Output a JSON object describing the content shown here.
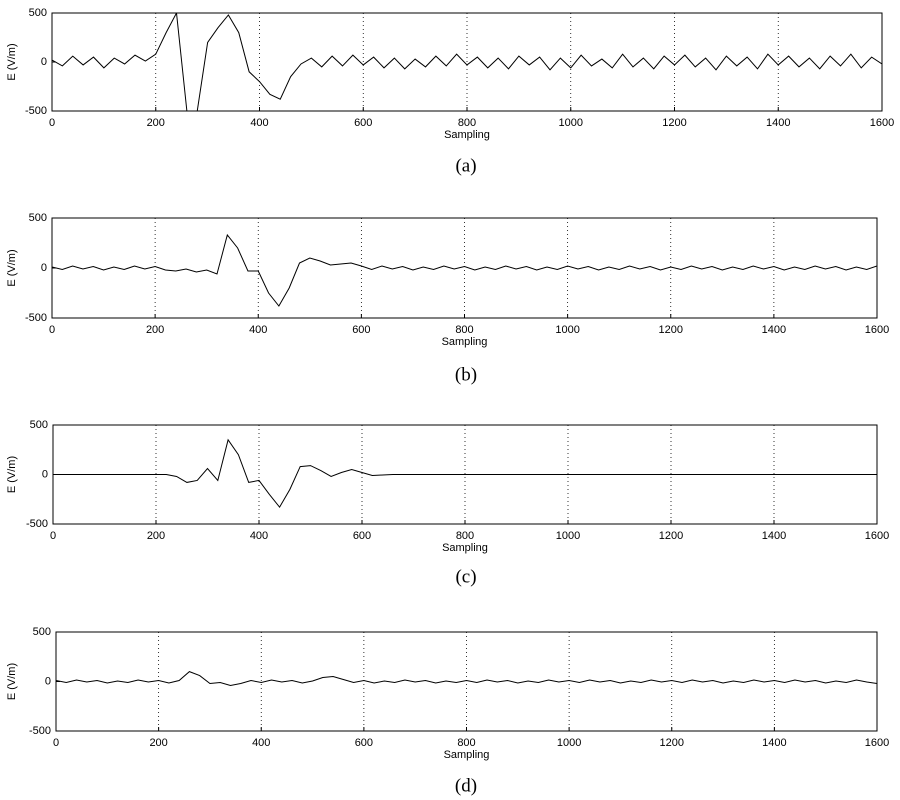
{
  "chart_data": [
    {
      "type": "line",
      "caption": "(a)",
      "xlabel": "Sampling",
      "ylabel": "E (V/m)",
      "color": "#000000",
      "grid": true,
      "xlim": [
        0,
        1600
      ],
      "xticks": [
        0,
        200,
        400,
        600,
        800,
        1000,
        1200,
        1400,
        1600
      ],
      "ylim": [
        -500,
        500
      ],
      "yticks": [
        -500,
        0,
        500
      ],
      "x": [
        0,
        20,
        40,
        60,
        80,
        100,
        120,
        140,
        160,
        180,
        200,
        220,
        240,
        260,
        280,
        300,
        320,
        340,
        360,
        380,
        400,
        420,
        440,
        460,
        480,
        500,
        520,
        540,
        560,
        580,
        600,
        620,
        640,
        660,
        680,
        700,
        720,
        740,
        760,
        780,
        800,
        820,
        840,
        860,
        880,
        900,
        920,
        940,
        960,
        980,
        1000,
        1020,
        1040,
        1060,
        1080,
        1100,
        1120,
        1140,
        1160,
        1180,
        1200,
        1220,
        1240,
        1260,
        1280,
        1300,
        1320,
        1340,
        1360,
        1380,
        1400,
        1420,
        1440,
        1460,
        1480,
        1500,
        1520,
        1540,
        1560,
        1580,
        1600
      ],
      "values": [
        20,
        -40,
        60,
        -30,
        50,
        -60,
        40,
        -20,
        70,
        10,
        80,
        300,
        500,
        -500,
        -500,
        200,
        350,
        480,
        300,
        -100,
        -200,
        -330,
        -380,
        -150,
        -20,
        40,
        -50,
        60,
        -40,
        70,
        -30,
        50,
        -60,
        40,
        -70,
        30,
        -50,
        60,
        -40,
        80,
        -30,
        50,
        -60,
        40,
        -70,
        60,
        -30,
        50,
        -80,
        40,
        -60,
        70,
        -40,
        30,
        -60,
        80,
        -50,
        40,
        -70,
        60,
        -30,
        70,
        -50,
        40,
        -80,
        60,
        -40,
        50,
        -70,
        80,
        -30,
        60,
        -50,
        40,
        -70,
        60,
        -40,
        80,
        -60,
        50,
        -20
      ]
    },
    {
      "type": "line",
      "caption": "(b)",
      "xlabel": "Sampling",
      "ylabel": "E (V/m)",
      "color": "#000000",
      "grid": true,
      "xlim": [
        0,
        1600
      ],
      "xticks": [
        0,
        200,
        400,
        600,
        800,
        1000,
        1200,
        1400,
        1600
      ],
      "ylim": [
        -500,
        500
      ],
      "yticks": [
        -500,
        0,
        500
      ],
      "x": [
        0,
        20,
        40,
        60,
        80,
        100,
        120,
        140,
        160,
        180,
        200,
        220,
        240,
        260,
        280,
        300,
        320,
        340,
        360,
        380,
        400,
        420,
        440,
        460,
        480,
        500,
        520,
        540,
        560,
        580,
        600,
        620,
        640,
        660,
        680,
        700,
        720,
        740,
        760,
        780,
        800,
        820,
        840,
        860,
        880,
        900,
        920,
        940,
        960,
        980,
        1000,
        1020,
        1040,
        1060,
        1080,
        1100,
        1120,
        1140,
        1160,
        1180,
        1200,
        1220,
        1240,
        1260,
        1280,
        1300,
        1320,
        1340,
        1360,
        1380,
        1400,
        1420,
        1440,
        1460,
        1480,
        1500,
        1520,
        1540,
        1560,
        1580,
        1600
      ],
      "values": [
        10,
        -15,
        20,
        -10,
        15,
        -20,
        10,
        -15,
        20,
        -10,
        15,
        -20,
        -30,
        -10,
        -40,
        -20,
        -60,
        330,
        200,
        -30,
        -30,
        -250,
        -380,
        -200,
        50,
        100,
        70,
        30,
        40,
        50,
        20,
        -15,
        20,
        -10,
        15,
        -20,
        10,
        -15,
        20,
        -10,
        15,
        -20,
        10,
        -15,
        20,
        -10,
        15,
        -20,
        10,
        -15,
        20,
        -10,
        15,
        -20,
        10,
        -15,
        20,
        -10,
        15,
        -20,
        10,
        -15,
        20,
        -10,
        15,
        -20,
        10,
        -15,
        20,
        -10,
        15,
        -20,
        10,
        -15,
        20,
        -10,
        15,
        -20,
        10,
        -15,
        20
      ]
    },
    {
      "type": "line",
      "caption": "(c)",
      "xlabel": "Sampling",
      "ylabel": "E (V/m)",
      "color": "#000000",
      "grid": true,
      "xlim": [
        0,
        1600
      ],
      "xticks": [
        0,
        200,
        400,
        600,
        800,
        1000,
        1200,
        1400,
        1600
      ],
      "ylim": [
        -500,
        500
      ],
      "yticks": [
        -500,
        0,
        500
      ],
      "x": [
        0,
        20,
        40,
        60,
        80,
        100,
        120,
        140,
        160,
        180,
        200,
        220,
        240,
        260,
        280,
        300,
        320,
        340,
        360,
        380,
        400,
        420,
        440,
        460,
        480,
        500,
        520,
        540,
        560,
        580,
        600,
        620,
        640,
        660,
        680,
        700,
        720,
        740,
        760,
        780,
        800,
        820,
        840,
        860,
        880,
        900,
        920,
        940,
        960,
        980,
        1000,
        1020,
        1040,
        1060,
        1080,
        1100,
        1120,
        1140,
        1160,
        1180,
        1200,
        1220,
        1240,
        1260,
        1280,
        1300,
        1320,
        1340,
        1360,
        1380,
        1400,
        1420,
        1440,
        1460,
        1480,
        1500,
        1520,
        1540,
        1560,
        1580,
        1600
      ],
      "values": [
        0,
        0,
        0,
        0,
        0,
        0,
        0,
        0,
        0,
        0,
        0,
        0,
        -20,
        -80,
        -60,
        60,
        -60,
        350,
        200,
        -80,
        -60,
        -200,
        -330,
        -150,
        80,
        90,
        40,
        -20,
        20,
        50,
        20,
        -10,
        -5,
        0,
        0,
        0,
        0,
        0,
        0,
        0,
        0,
        0,
        0,
        0,
        0,
        0,
        0,
        0,
        0,
        0,
        0,
        0,
        0,
        0,
        0,
        0,
        0,
        0,
        0,
        0,
        0,
        0,
        0,
        0,
        0,
        0,
        0,
        0,
        0,
        0,
        0,
        0,
        0,
        0,
        0,
        0,
        0,
        0,
        0,
        0,
        0
      ]
    },
    {
      "type": "line",
      "caption": "(d)",
      "xlabel": "Sampling",
      "ylabel": "E (V/m)",
      "color": "#000000",
      "grid": true,
      "xlim": [
        0,
        1600
      ],
      "xticks": [
        0,
        200,
        400,
        600,
        800,
        1000,
        1200,
        1400,
        1600
      ],
      "ylim": [
        -500,
        500
      ],
      "yticks": [
        -500,
        0,
        500
      ],
      "x": [
        0,
        20,
        40,
        60,
        80,
        100,
        120,
        140,
        160,
        180,
        200,
        220,
        240,
        260,
        280,
        300,
        320,
        340,
        360,
        380,
        400,
        420,
        440,
        460,
        480,
        500,
        520,
        540,
        560,
        580,
        600,
        620,
        640,
        660,
        680,
        700,
        720,
        740,
        760,
        780,
        800,
        820,
        840,
        860,
        880,
        900,
        920,
        940,
        960,
        980,
        1000,
        1020,
        1040,
        1060,
        1080,
        1100,
        1120,
        1140,
        1160,
        1180,
        1200,
        1220,
        1240,
        1260,
        1280,
        1300,
        1320,
        1340,
        1360,
        1380,
        1400,
        1420,
        1440,
        1460,
        1480,
        1500,
        1520,
        1540,
        1560,
        1580,
        1600
      ],
      "values": [
        10,
        -10,
        15,
        -5,
        10,
        -15,
        5,
        -10,
        15,
        -5,
        10,
        -15,
        10,
        100,
        60,
        -20,
        -10,
        -40,
        -20,
        10,
        -10,
        15,
        -5,
        10,
        -15,
        5,
        40,
        50,
        20,
        -10,
        10,
        -15,
        5,
        -10,
        15,
        -5,
        10,
        -15,
        5,
        -10,
        10,
        -10,
        15,
        -5,
        10,
        -15,
        5,
        -10,
        15,
        -5,
        10,
        -10,
        15,
        -5,
        10,
        -15,
        5,
        -10,
        15,
        -5,
        10,
        -10,
        15,
        -5,
        10,
        -15,
        5,
        -10,
        15,
        -5,
        10,
        -10,
        15,
        -5,
        10,
        -15,
        5,
        -10,
        15,
        -5,
        -20
      ]
    }
  ]
}
